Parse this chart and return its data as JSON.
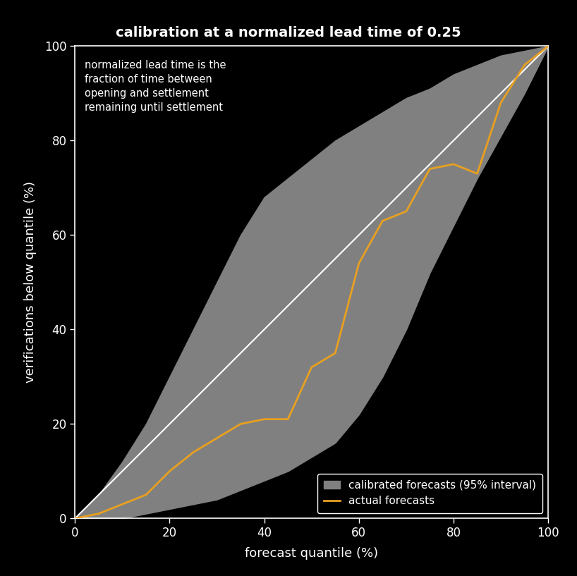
{
  "title": "calibration at a normalized lead time of 0.25",
  "xlabel": "forecast quantile (%)",
  "ylabel": "verifications below quantile (%)",
  "annotation": "normalized lead time is the\nfraction of time between\nopening and settlement\nremaining until settlement",
  "background_color": "#000000",
  "plot_bg_color": "#000000",
  "axis_color": "#ffffff",
  "title_color": "#ffffff",
  "label_color": "#ffffff",
  "tick_color": "#ffffff",
  "diagonal_color": "#ffffff",
  "fill_color": "#808080",
  "line_color": "#E8A020",
  "legend_bg": "#000000",
  "legend_edge": "#ffffff",
  "xlim": [
    0,
    100
  ],
  "ylim": [
    0,
    100
  ],
  "xticks": [
    0,
    20,
    40,
    60,
    80,
    100
  ],
  "yticks": [
    0,
    20,
    40,
    60,
    80,
    100
  ],
  "forecast_x": [
    0,
    5,
    10,
    15,
    20,
    25,
    30,
    35,
    40,
    45,
    50,
    55,
    60,
    65,
    70,
    75,
    80,
    85,
    90,
    95,
    100
  ],
  "actual_y": [
    0,
    1,
    3,
    5,
    10,
    14,
    17,
    20,
    21,
    21,
    32,
    35,
    54,
    63,
    65,
    74,
    75,
    73,
    88,
    96,
    100
  ],
  "upper_y": [
    0,
    5,
    12,
    20,
    30,
    40,
    50,
    60,
    68,
    72,
    76,
    80,
    83,
    86,
    89,
    91,
    94,
    96,
    98,
    99,
    100
  ],
  "lower_y": [
    0,
    0,
    0,
    1,
    2,
    3,
    4,
    6,
    8,
    10,
    13,
    16,
    22,
    30,
    40,
    52,
    62,
    72,
    81,
    90,
    100
  ]
}
